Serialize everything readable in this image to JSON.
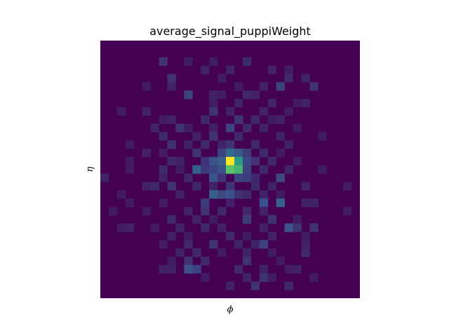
{
  "chart_data": {
    "type": "heatmap",
    "title": "average_signal_puppiWeight",
    "xlabel": "ϕ",
    "ylabel": "η",
    "colormap": "viridis",
    "colormap_stops": [
      "#440154",
      "#3b528b",
      "#21918c",
      "#5ec962",
      "#fde725"
    ],
    "grid": false,
    "legend": "none",
    "rows": 31,
    "cols": 31,
    "cells": [
      [
        7,
        2,
        0.15
      ],
      [
        10,
        2,
        0.08
      ],
      [
        13,
        2,
        0.08
      ],
      [
        17,
        2,
        0.12
      ],
      [
        12,
        3,
        0.1
      ],
      [
        15,
        3,
        0.1
      ],
      [
        20,
        3,
        0.1
      ],
      [
        22,
        3,
        0.08
      ],
      [
        8,
        4,
        0.15
      ],
      [
        14,
        4,
        0.08
      ],
      [
        22,
        4,
        0.12
      ],
      [
        24,
        4,
        0.1
      ],
      [
        5,
        5,
        0.08
      ],
      [
        8,
        5,
        0.1
      ],
      [
        16,
        5,
        0.08
      ],
      [
        19,
        5,
        0.1
      ],
      [
        21,
        5,
        0.2
      ],
      [
        25,
        5,
        0.15
      ],
      [
        10,
        6,
        0.2
      ],
      [
        13,
        6,
        0.1
      ],
      [
        14,
        6,
        0.08
      ],
      [
        17,
        6,
        0.12
      ],
      [
        18,
        6,
        0.1
      ],
      [
        13,
        7,
        0.08
      ],
      [
        16,
        7,
        0.1
      ],
      [
        20,
        7,
        0.1
      ],
      [
        23,
        7,
        0.08
      ],
      [
        24,
        7,
        0.1
      ],
      [
        2,
        8,
        0.08
      ],
      [
        5,
        8,
        0.1
      ],
      [
        13,
        8,
        0.15
      ],
      [
        15,
        8,
        0.1
      ],
      [
        19,
        8,
        0.1
      ],
      [
        22,
        8,
        0.08
      ],
      [
        7,
        9,
        0.08
      ],
      [
        8,
        9,
        0.1
      ],
      [
        12,
        9,
        0.12
      ],
      [
        16,
        9,
        0.15
      ],
      [
        18,
        9,
        0.12
      ],
      [
        20,
        9,
        0.08
      ],
      [
        21,
        9,
        0.1
      ],
      [
        6,
        10,
        0.1
      ],
      [
        9,
        10,
        0.15
      ],
      [
        10,
        10,
        0.08
      ],
      [
        13,
        10,
        0.1
      ],
      [
        15,
        10,
        0.2
      ],
      [
        17,
        10,
        0.12
      ],
      [
        19,
        10,
        0.1
      ],
      [
        23,
        10,
        0.08
      ],
      [
        7,
        11,
        0.12
      ],
      [
        11,
        11,
        0.1
      ],
      [
        13,
        11,
        0.15
      ],
      [
        16,
        11,
        0.12
      ],
      [
        21,
        11,
        0.1
      ],
      [
        26,
        11,
        0.08
      ],
      [
        3,
        12,
        0.08
      ],
      [
        8,
        12,
        0.15
      ],
      [
        10,
        12,
        0.1
      ],
      [
        12,
        12,
        0.12
      ],
      [
        14,
        12,
        0.1
      ],
      [
        15,
        12,
        0.15
      ],
      [
        18,
        12,
        0.12
      ],
      [
        22,
        12,
        0.1
      ],
      [
        5,
        13,
        0.1
      ],
      [
        7,
        13,
        0.08
      ],
      [
        11,
        13,
        0.15
      ],
      [
        14,
        13,
        0.2
      ],
      [
        15,
        13,
        0.35
      ],
      [
        16,
        13,
        0.28
      ],
      [
        17,
        13,
        0.18
      ],
      [
        19,
        13,
        0.12
      ],
      [
        21,
        13,
        0.08
      ],
      [
        3,
        14,
        0.08
      ],
      [
        8,
        14,
        0.12
      ],
      [
        9,
        14,
        0.1
      ],
      [
        12,
        14,
        0.15
      ],
      [
        13,
        14,
        0.25
      ],
      [
        14,
        14,
        0.3
      ],
      [
        15,
        14,
        1.0
      ],
      [
        16,
        14,
        0.55
      ],
      [
        17,
        14,
        0.22
      ],
      [
        18,
        14,
        0.15
      ],
      [
        20,
        14,
        0.12
      ],
      [
        23,
        14,
        0.08
      ],
      [
        3,
        15,
        0.08
      ],
      [
        7,
        15,
        0.12
      ],
      [
        9,
        15,
        0.08
      ],
      [
        11,
        15,
        0.3
      ],
      [
        12,
        15,
        0.18
      ],
      [
        13,
        15,
        0.2
      ],
      [
        14,
        15,
        0.25
      ],
      [
        15,
        15,
        0.72
      ],
      [
        16,
        15,
        0.65
      ],
      [
        17,
        15,
        0.2
      ],
      [
        19,
        15,
        0.12
      ],
      [
        22,
        15,
        0.1
      ],
      [
        26,
        15,
        0.08
      ],
      [
        0,
        16,
        0.1
      ],
      [
        7,
        16,
        0.1
      ],
      [
        10,
        16,
        0.12
      ],
      [
        13,
        16,
        0.25
      ],
      [
        14,
        16,
        0.15
      ],
      [
        16,
        16,
        0.2
      ],
      [
        17,
        16,
        0.18
      ],
      [
        18,
        16,
        0.12
      ],
      [
        21,
        16,
        0.22
      ],
      [
        5,
        17,
        0.1
      ],
      [
        6,
        17,
        0.12
      ],
      [
        8,
        17,
        0.15
      ],
      [
        11,
        17,
        0.12
      ],
      [
        13,
        17,
        0.1
      ],
      [
        15,
        17,
        0.15
      ],
      [
        18,
        17,
        0.12
      ],
      [
        20,
        17,
        0.1
      ],
      [
        24,
        17,
        0.1
      ],
      [
        29,
        17,
        0.08
      ],
      [
        2,
        18,
        0.08
      ],
      [
        9,
        18,
        0.1
      ],
      [
        13,
        18,
        0.3
      ],
      [
        14,
        18,
        0.22
      ],
      [
        15,
        18,
        0.25
      ],
      [
        16,
        18,
        0.15
      ],
      [
        17,
        18,
        0.12
      ],
      [
        19,
        18,
        0.1
      ],
      [
        21,
        18,
        0.08
      ],
      [
        3,
        19,
        0.08
      ],
      [
        7,
        19,
        0.08
      ],
      [
        12,
        19,
        0.18
      ],
      [
        15,
        19,
        0.1
      ],
      [
        19,
        19,
        0.25
      ],
      [
        21,
        19,
        0.3
      ],
      [
        24,
        19,
        0.1
      ],
      [
        25,
        19,
        0.1
      ],
      [
        1,
        20,
        0.08
      ],
      [
        5,
        20,
        0.08
      ],
      [
        10,
        20,
        0.1
      ],
      [
        12,
        20,
        0.15
      ],
      [
        14,
        20,
        0.12
      ],
      [
        17,
        20,
        0.12
      ],
      [
        19,
        20,
        0.1
      ],
      [
        29,
        20,
        0.08
      ],
      [
        8,
        21,
        0.12
      ],
      [
        11,
        21,
        0.1
      ],
      [
        13,
        21,
        0.08
      ],
      [
        17,
        21,
        0.18
      ],
      [
        20,
        21,
        0.15
      ],
      [
        23,
        21,
        0.08
      ],
      [
        2,
        22,
        0.08
      ],
      [
        3,
        22,
        0.1
      ],
      [
        6,
        22,
        0.08
      ],
      [
        9,
        22,
        0.1
      ],
      [
        12,
        22,
        0.12
      ],
      [
        14,
        22,
        0.1
      ],
      [
        19,
        22,
        0.1
      ],
      [
        22,
        22,
        0.25
      ],
      [
        23,
        22,
        0.15
      ],
      [
        25,
        22,
        0.15
      ],
      [
        8,
        23,
        0.1
      ],
      [
        10,
        23,
        0.08
      ],
      [
        15,
        23,
        0.12
      ],
      [
        17,
        23,
        0.08
      ],
      [
        20,
        23,
        0.1
      ],
      [
        24,
        23,
        0.08
      ],
      [
        7,
        24,
        0.08
      ],
      [
        10,
        24,
        0.12
      ],
      [
        13,
        24,
        0.15
      ],
      [
        16,
        24,
        0.1
      ],
      [
        18,
        24,
        0.1
      ],
      [
        19,
        24,
        0.2
      ],
      [
        24,
        24,
        0.1
      ],
      [
        9,
        25,
        0.1
      ],
      [
        11,
        25,
        0.12
      ],
      [
        14,
        25,
        0.08
      ],
      [
        17,
        25,
        0.1
      ],
      [
        20,
        25,
        0.08
      ],
      [
        24,
        25,
        0.12
      ],
      [
        8,
        26,
        0.08
      ],
      [
        10,
        26,
        0.15
      ],
      [
        12,
        26,
        0.12
      ],
      [
        17,
        26,
        0.15
      ],
      [
        21,
        26,
        0.08
      ],
      [
        7,
        27,
        0.1
      ],
      [
        8,
        27,
        0.1
      ],
      [
        10,
        27,
        0.25
      ],
      [
        11,
        27,
        0.2
      ],
      [
        16,
        27,
        0.12
      ],
      [
        19,
        27,
        0.1
      ],
      [
        22,
        27,
        0.08
      ],
      [
        23,
        27,
        0.1
      ],
      [
        12,
        28,
        0.08
      ],
      [
        17,
        28,
        0.1
      ],
      [
        19,
        28,
        0.15
      ],
      [
        20,
        28,
        0.08
      ],
      [
        25,
        28,
        0.08
      ],
      [
        15,
        29,
        0.1
      ],
      [
        18,
        29,
        0.15
      ],
      [
        22,
        29,
        0.12
      ]
    ]
  }
}
